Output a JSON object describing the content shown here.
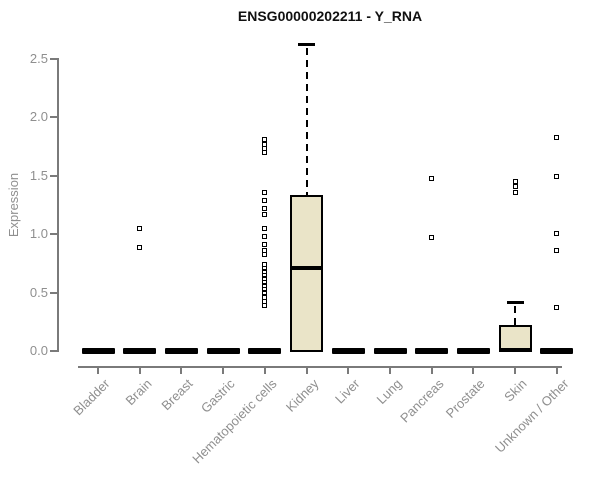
{
  "chart_data": {
    "type": "boxplot",
    "title": "ENSG00000202211 - Y_RNA",
    "ylabel": "Expression",
    "xlabel": "",
    "ylim": [
      0,
      2.5
    ],
    "yticks": [
      0,
      0.5,
      1,
      1.5,
      2,
      2.5
    ],
    "ytick_labels": [
      "0.0",
      "0.5",
      "1.0",
      "1.5",
      "2.0",
      "2.5"
    ],
    "grid": false,
    "legend": "none",
    "categories": [
      "Bladder",
      "Brain",
      "Breast",
      "Gastric",
      "Hematopoietic cells",
      "Kidney",
      "Liver",
      "Lung",
      "Pancreas",
      "Prostate",
      "Skin",
      "Unknown / Other"
    ],
    "boxes": [
      {
        "category": "Bladder",
        "q1": 0,
        "median": 0,
        "q3": 0,
        "whisker_low": 0,
        "whisker_high": 0,
        "outliers": []
      },
      {
        "category": "Brain",
        "q1": 0,
        "median": 0,
        "q3": 0,
        "whisker_low": 0,
        "whisker_high": 0,
        "outliers": [
          1.05,
          0.89
        ]
      },
      {
        "category": "Breast",
        "q1": 0,
        "median": 0,
        "q3": 0,
        "whisker_low": 0,
        "whisker_high": 0,
        "outliers": []
      },
      {
        "category": "Gastric",
        "q1": 0,
        "median": 0,
        "q3": 0,
        "whisker_low": 0,
        "whisker_high": 0,
        "outliers": []
      },
      {
        "category": "Hematopoietic cells",
        "q1": 0,
        "median": 0,
        "q3": 0,
        "whisker_low": 0,
        "whisker_high": 0,
        "outliers": [
          1.81,
          1.77,
          1.73,
          1.7,
          1.36,
          1.29,
          1.22,
          1.17,
          1.05,
          0.98,
          0.91,
          0.86,
          0.83,
          0.74,
          0.71,
          0.68,
          0.65,
          0.62,
          0.59,
          0.56,
          0.53,
          0.5,
          0.46,
          0.42,
          0.39
        ]
      },
      {
        "category": "Kidney",
        "q1": 0,
        "median": 0.71,
        "q3": 1.33,
        "whisker_low": 0,
        "whisker_high": 2.63,
        "outliers": []
      },
      {
        "category": "Liver",
        "q1": 0,
        "median": 0,
        "q3": 0,
        "whisker_low": 0,
        "whisker_high": 0,
        "outliers": []
      },
      {
        "category": "Lung",
        "q1": 0,
        "median": 0,
        "q3": 0,
        "whisker_low": 0,
        "whisker_high": 0,
        "outliers": []
      },
      {
        "category": "Pancreas",
        "q1": 0,
        "median": 0,
        "q3": 0,
        "whisker_low": 0,
        "whisker_high": 0,
        "outliers": [
          1.48,
          0.97
        ]
      },
      {
        "category": "Prostate",
        "q1": 0,
        "median": 0,
        "q3": 0,
        "whisker_low": 0,
        "whisker_high": 0,
        "outliers": []
      },
      {
        "category": "Skin",
        "q1": 0,
        "median": 0.01,
        "q3": 0.21,
        "whisker_low": 0,
        "whisker_high": 0.42,
        "outliers": [
          1.45,
          1.41,
          1.36
        ]
      },
      {
        "category": "Unknown / Other",
        "q1": 0,
        "median": 0,
        "q3": 0,
        "whisker_low": 0,
        "whisker_high": 0,
        "outliers": [
          1.83,
          1.49,
          1.01,
          0.86,
          0.37
        ]
      }
    ],
    "colors": {
      "box_fill": "#EAE4C8",
      "box_border": "#000000",
      "axis_line": "#7a7a7a",
      "tick_text": "#8f8f8f",
      "title_text": "#111111",
      "background": "#ffffff"
    }
  }
}
